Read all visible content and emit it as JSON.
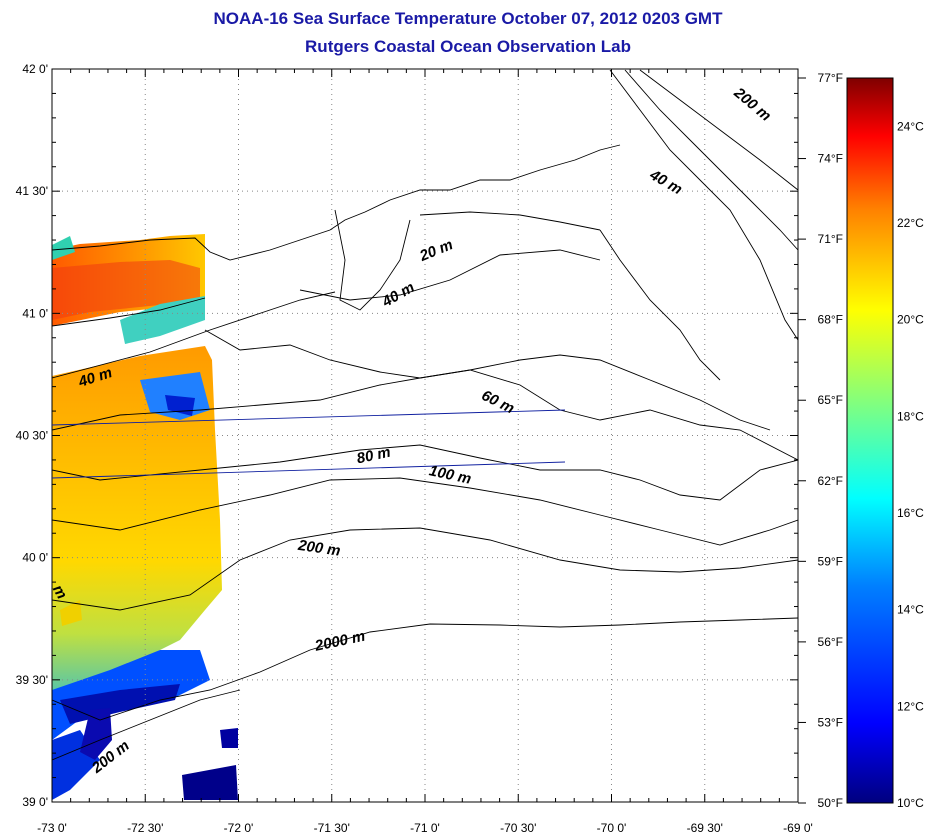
{
  "header": {
    "title": "NOAA-16 Sea Surface Temperature October 07, 2012 0203 GMT",
    "subtitle": "Rutgers Coastal Ocean Observation Lab"
  },
  "map": {
    "lat_range": [
      39.0,
      42.0
    ],
    "lon_range": [
      -73.0,
      -69.0
    ],
    "lat_ticks": [
      "42 0'",
      "41 30'",
      "41 0'",
      "40 30'",
      "40 0'",
      "39 30'",
      "39 0'"
    ],
    "lon_ticks": [
      "-73 0'",
      "-72 30'",
      "-72 0'",
      "-71 30'",
      "-71 0'",
      "-70 30'",
      "-70 0'",
      "-69 30'",
      "-69 0'"
    ],
    "isobath_labels": [
      {
        "text": "20 m",
        "lon": -70.93,
        "lat": 41.24
      },
      {
        "text": "40 m",
        "lon": -71.13,
        "lat": 41.06
      },
      {
        "text": "40 m",
        "lon": -72.76,
        "lat": 40.72
      },
      {
        "text": "40 m",
        "lon": -69.72,
        "lat": 41.52
      },
      {
        "text": "60 m",
        "lon": -70.62,
        "lat": 40.62
      },
      {
        "text": "80 m",
        "lon": -71.27,
        "lat": 40.4
      },
      {
        "text": "100 m",
        "lon": -70.87,
        "lat": 40.32
      },
      {
        "text": "200 m",
        "lon": -71.57,
        "lat": 40.02
      },
      {
        "text": "200 m",
        "lon": -69.26,
        "lat": 41.84
      },
      {
        "text": "200 m",
        "lon": -72.67,
        "lat": 39.17
      },
      {
        "text": "2000 m",
        "lon": -71.45,
        "lat": 39.64
      },
      {
        "text": "m",
        "lon": -72.98,
        "lat": 39.85
      }
    ]
  },
  "colorbar": {
    "celsius_labels": [
      "24°C",
      "22°C",
      "20°C",
      "18°C",
      "16°C",
      "14°C",
      "12°C",
      "10°C"
    ],
    "fahrenheit_labels": [
      "77°F",
      "74°F",
      "71°F",
      "68°F",
      "65°F",
      "62°F",
      "59°F",
      "56°F",
      "53°F",
      "50°F"
    ],
    "range_f": [
      50,
      77
    ],
    "colors": [
      "#00007f",
      "#0000ff",
      "#0080ff",
      "#00ffff",
      "#80ff80",
      "#ffff00",
      "#ff8000",
      "#ff0000",
      "#7f0000"
    ]
  }
}
